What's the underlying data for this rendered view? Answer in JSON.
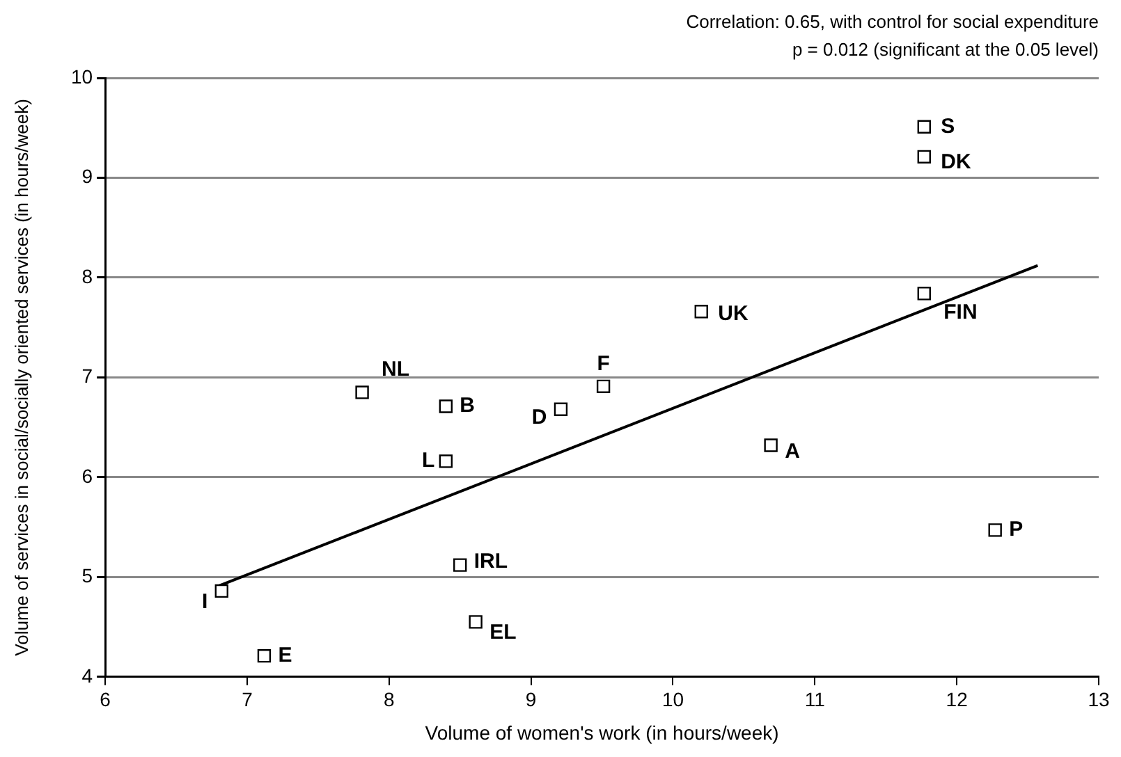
{
  "chart_data": {
    "type": "scatter",
    "xlabel": "Volume of women's work (in hours/week)",
    "ylabel": "Volume of services in social/socially oriented services (in hours/week)",
    "annotations": [
      "Correlation: 0.65, with control for social expenditure",
      "p = 0.012 (significant at the 0.05 level)"
    ],
    "xlim": [
      6,
      13
    ],
    "xticks": [
      6,
      7,
      8,
      9,
      10,
      11,
      12,
      13
    ],
    "ylim": [
      4,
      10
    ],
    "yticks": [
      4,
      5,
      6,
      7,
      8,
      9,
      10
    ],
    "grid": "y",
    "legend": false,
    "marker": "square",
    "series": [
      {
        "type": "scatter",
        "color": "#000000",
        "x": [
          11.77,
          11.77,
          11.77,
          10.2,
          9.51,
          9.21,
          8.4,
          7.81,
          8.4,
          10.69,
          12.27,
          8.5,
          8.61,
          6.82,
          7.12
        ],
        "values": [
          9.51,
          9.21,
          7.84,
          7.66,
          6.91,
          6.68,
          6.71,
          6.85,
          6.16,
          6.32,
          5.47,
          5.12,
          4.55,
          4.86,
          4.21
        ],
        "value_labels": [
          "S",
          "DK",
          "FIN",
          "UK",
          "F",
          "D",
          "B",
          "NL",
          "L",
          "A",
          "P",
          "IRL",
          "EL",
          "I",
          "E"
        ]
      },
      {
        "type": "line",
        "color": "#000000",
        "marker": "none",
        "x": [
          6.78,
          12.57
        ],
        "values": [
          4.9,
          8.12
        ]
      }
    ]
  }
}
